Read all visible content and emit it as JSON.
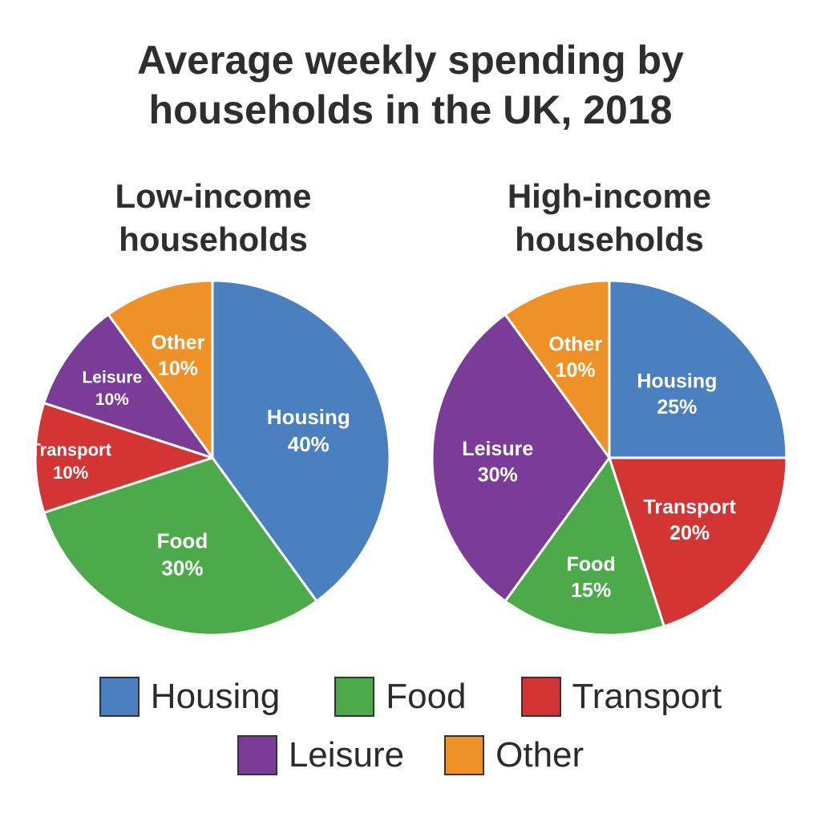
{
  "title": {
    "line1": "Average weekly spending by",
    "line2": "households in the UK, 2018"
  },
  "colors": {
    "Housing": "#4a7fc0",
    "Food": "#4daa4a",
    "Transport": "#d33434",
    "Leisure": "#7b3c97",
    "Other": "#ee9127"
  },
  "chart_data": [
    {
      "type": "pie",
      "title": "Low-income households",
      "title_lines": [
        "Low-income",
        "households"
      ],
      "slices": [
        {
          "label": "Housing",
          "value": 40,
          "value_label": "40%"
        },
        {
          "label": "Food",
          "value": 30,
          "value_label": "30%"
        },
        {
          "label": "Transport",
          "value": 10,
          "value_label": "10%"
        },
        {
          "label": "Leisure",
          "value": 10,
          "value_label": "10%"
        },
        {
          "label": "Other",
          "value": 10,
          "value_label": "10%"
        }
      ]
    },
    {
      "type": "pie",
      "title": "High-income households",
      "title_lines": [
        "High-income",
        "households"
      ],
      "slices": [
        {
          "label": "Housing",
          "value": 25,
          "value_label": "25%"
        },
        {
          "label": "Transport",
          "value": 20,
          "value_label": "20%"
        },
        {
          "label": "Food",
          "value": 15,
          "value_label": "15%"
        },
        {
          "label": "Leisure",
          "value": 30,
          "value_label": "30%"
        },
        {
          "label": "Other",
          "value": 10,
          "value_label": "10%"
        }
      ]
    }
  ],
  "legend": {
    "placement": "bottom",
    "items": [
      "Housing",
      "Food",
      "Transport",
      "Leisure",
      "Other"
    ]
  }
}
